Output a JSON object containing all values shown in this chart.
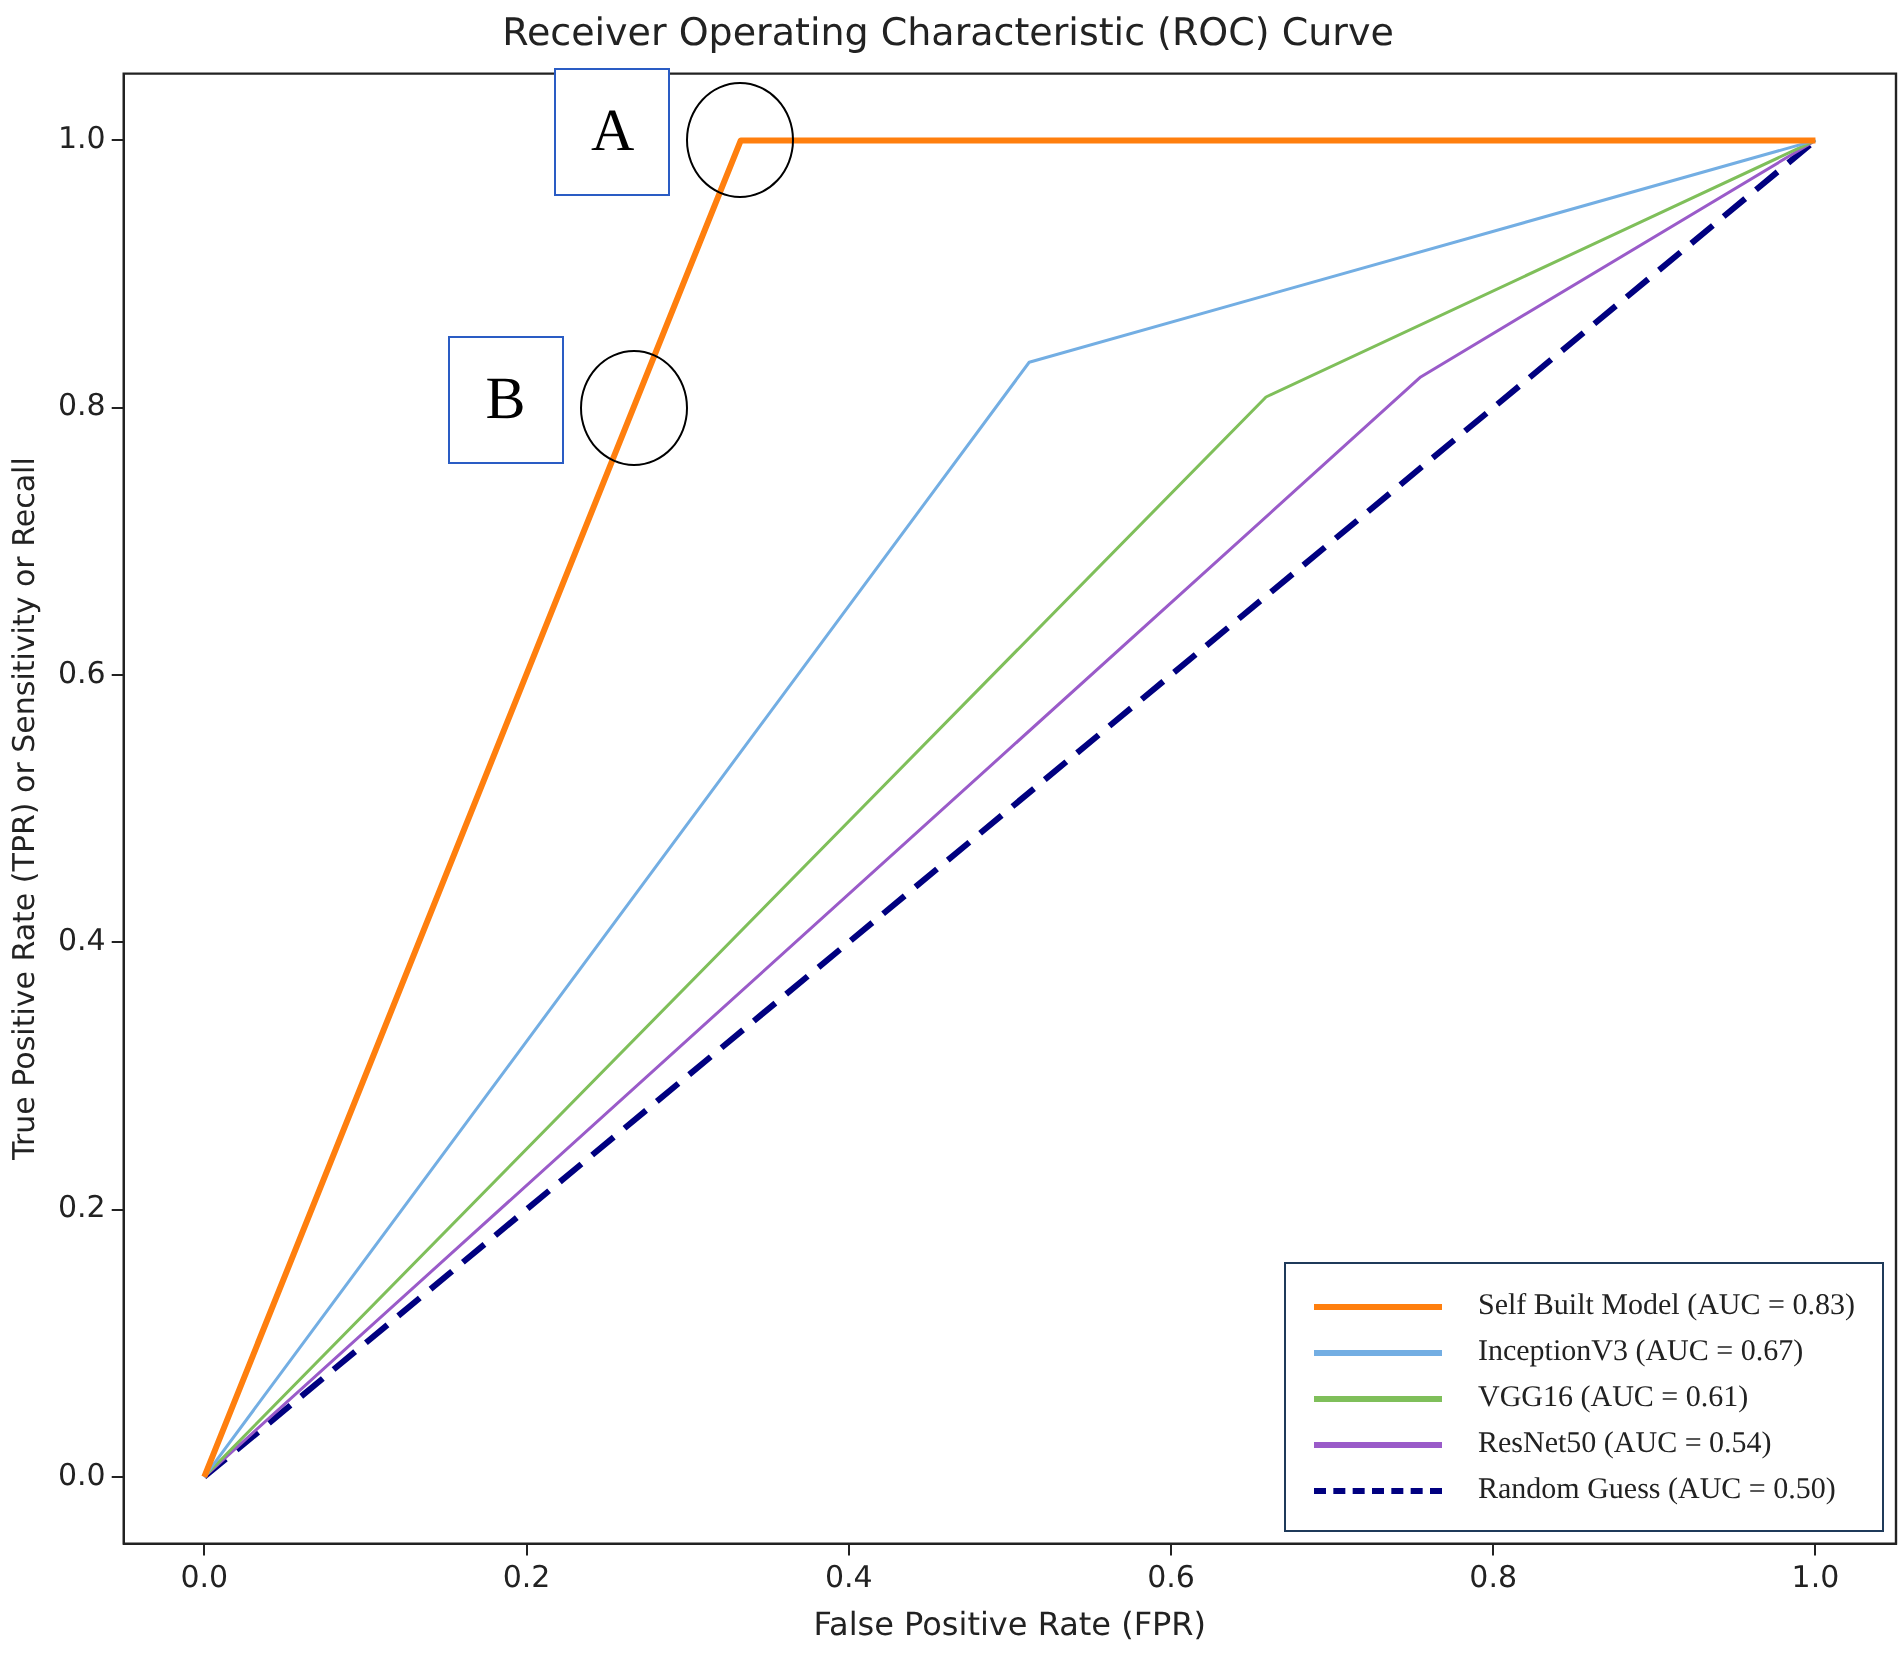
{
  "chart_data": {
    "type": "line",
    "title": "Receiver Operating Characteristic (ROC) Curve",
    "xlabel": "False Positive Rate (FPR)",
    "ylabel": "True Positive Rate (TPR) or Sensitivity or Recall",
    "series": [
      {
        "name": "Self Built Model (AUC = 0.83)",
        "color": "#ff7f0e",
        "x": [
          0,
          0.333,
          1.0
        ],
        "values": [
          0,
          1.0,
          1.0
        ]
      },
      {
        "name": "InceptionV3 (AUC = 0.67)",
        "color": "#73aee3",
        "x": [
          0,
          0.512,
          1.0
        ],
        "values": [
          0,
          0.834,
          1.0
        ]
      },
      {
        "name": "VGG16 (AUC = 0.61)",
        "color": "#7fbf5a",
        "x": [
          0,
          0.659,
          1.0
        ],
        "values": [
          0,
          0.808,
          1.0
        ]
      },
      {
        "name": "ResNet50 (AUC = 0.54)",
        "color": "#9a5bc9",
        "x": [
          0,
          0.755,
          1.0
        ],
        "values": [
          0,
          0.823,
          1.0
        ]
      },
      {
        "name": "Random Guess (AUC = 0.50)",
        "color": "#000080",
        "x": [
          0,
          1.0
        ],
        "values": [
          0,
          1.0
        ],
        "line_style": "dashed"
      }
    ],
    "xlim": [
      -0.05,
      1.05
    ],
    "ylim": [
      -0.05,
      1.05
    ],
    "xticks": [
      {
        "value": 0,
        "label": "0.0"
      },
      {
        "value": 0.2,
        "label": "0.2"
      },
      {
        "value": 0.4,
        "label": "0.4"
      },
      {
        "value": 0.6,
        "label": "0.6"
      },
      {
        "value": 0.8,
        "label": "0.8"
      },
      {
        "value": 1,
        "label": "1.0"
      }
    ],
    "yticks": [
      {
        "value": 0,
        "label": "0.0"
      },
      {
        "value": 0.2,
        "label": "0.2"
      },
      {
        "value": 0.4,
        "label": "0.4"
      },
      {
        "value": 0.6,
        "label": "0.6"
      },
      {
        "value": 0.8,
        "label": "0.8"
      },
      {
        "value": 1,
        "label": "1.0"
      }
    ],
    "annotations": [
      {
        "text": "A",
        "x": 0.333,
        "y": 1.0
      },
      {
        "text": "B",
        "x": 0.2664,
        "y": 0.8
      }
    ],
    "grid": false,
    "legend": "bottom right",
    "marker": "none",
    "line_style": "solid"
  }
}
